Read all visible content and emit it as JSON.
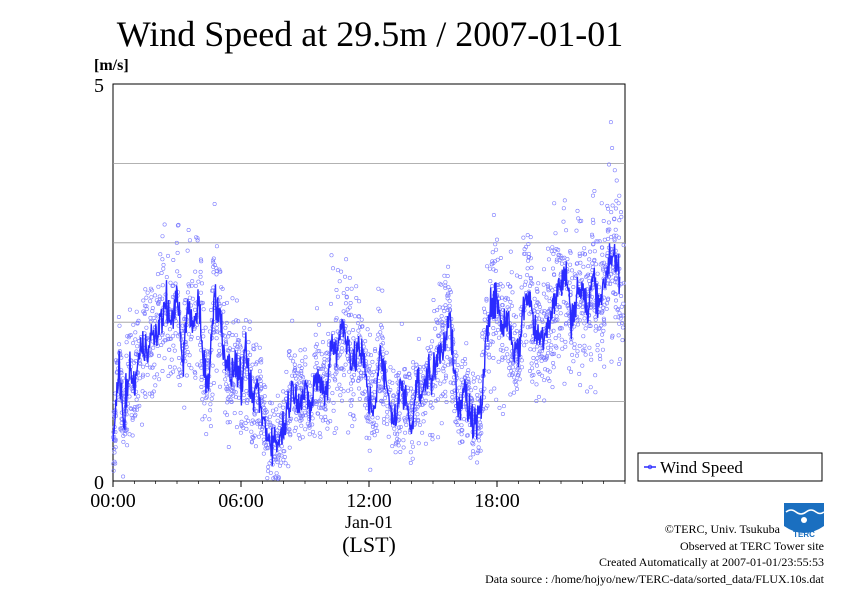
{
  "chart_data": {
    "type": "line",
    "title": "Wind Speed at 29.5m / 2007-01-01",
    "ylabel": "[m/s]",
    "xlabel": "(LST)",
    "x_date_label": "Jan-01",
    "x_tick_labels": [
      "00:00",
      "06:00",
      "12:00",
      "18:00"
    ],
    "x_ticks_hours": [
      0,
      6,
      12,
      18
    ],
    "xlim_hours": [
      0,
      24
    ],
    "y_tick_labels": [
      "0",
      "5"
    ],
    "ylim": [
      0,
      5
    ],
    "y_grid": [
      1,
      2,
      3,
      4
    ],
    "grid": true,
    "legend_position": "right",
    "series": [
      {
        "name": "Wind Speed",
        "color": "#2a2aff",
        "style": "line with scatter points (10s samples)",
        "hours": [
          0.0,
          0.25,
          0.5,
          0.75,
          1.0,
          1.25,
          1.5,
          1.75,
          2.0,
          2.25,
          2.5,
          2.75,
          3.0,
          3.25,
          3.5,
          3.75,
          4.0,
          4.25,
          4.5,
          4.75,
          5.0,
          5.25,
          5.5,
          5.75,
          6.0,
          6.25,
          6.5,
          6.75,
          7.0,
          7.25,
          7.5,
          7.75,
          8.0,
          8.25,
          8.5,
          8.75,
          9.0,
          9.25,
          9.5,
          9.75,
          10.0,
          10.25,
          10.5,
          10.75,
          11.0,
          11.25,
          11.5,
          11.75,
          12.0,
          12.25,
          12.5,
          12.75,
          13.0,
          13.25,
          13.5,
          13.75,
          14.0,
          14.25,
          14.5,
          14.75,
          15.0,
          15.25,
          15.5,
          15.75,
          16.0,
          16.25,
          16.5,
          16.75,
          17.0,
          17.25,
          17.5,
          17.75,
          18.0,
          18.25,
          18.5,
          18.75,
          19.0,
          19.25,
          19.5,
          19.75,
          20.0,
          20.25,
          20.5,
          20.75,
          21.0,
          21.25,
          21.5,
          21.75,
          22.0,
          22.25,
          22.5,
          22.75,
          23.0,
          23.25,
          23.5,
          23.75
        ],
        "values": [
          0.4,
          1.5,
          0.7,
          1.4,
          1.2,
          1.6,
          1.7,
          1.8,
          1.8,
          2.0,
          2.3,
          1.9,
          2.5,
          1.4,
          2.2,
          1.9,
          2.3,
          1.5,
          1.2,
          2.4,
          2.1,
          1.6,
          1.3,
          1.5,
          1.2,
          1.6,
          1.0,
          1.2,
          0.8,
          0.6,
          0.5,
          0.5,
          0.7,
          1.0,
          1.2,
          1.0,
          1.1,
          0.9,
          1.3,
          1.2,
          1.1,
          1.8,
          1.6,
          2.0,
          1.8,
          1.4,
          1.7,
          1.5,
          1.0,
          0.9,
          1.6,
          1.3,
          0.9,
          0.8,
          1.2,
          1.0,
          0.7,
          1.3,
          1.0,
          1.4,
          1.3,
          1.6,
          1.7,
          2.2,
          1.3,
          0.8,
          1.2,
          0.8,
          0.7,
          0.8,
          2.0,
          2.2,
          2.3,
          1.9,
          2.1,
          1.7,
          1.6,
          2.2,
          2.4,
          1.9,
          1.8,
          1.9,
          2.1,
          2.3,
          2.5,
          2.6,
          2.0,
          2.4,
          2.4,
          2.1,
          2.6,
          2.3,
          2.4,
          2.8,
          2.9,
          2.5
        ]
      }
    ]
  },
  "footer": {
    "copyright": "©TERC, Univ. Tsukuba",
    "observed": "Observed at TERC Tower site",
    "created": "Created Automatically at 2007-01-01/23:55:53",
    "source": "Data source : /home/hojyo/new/TERC-data/sorted_data/FLUX.10s.dat"
  },
  "logo": {
    "text": "TERC",
    "color": "#1a6fc0"
  }
}
